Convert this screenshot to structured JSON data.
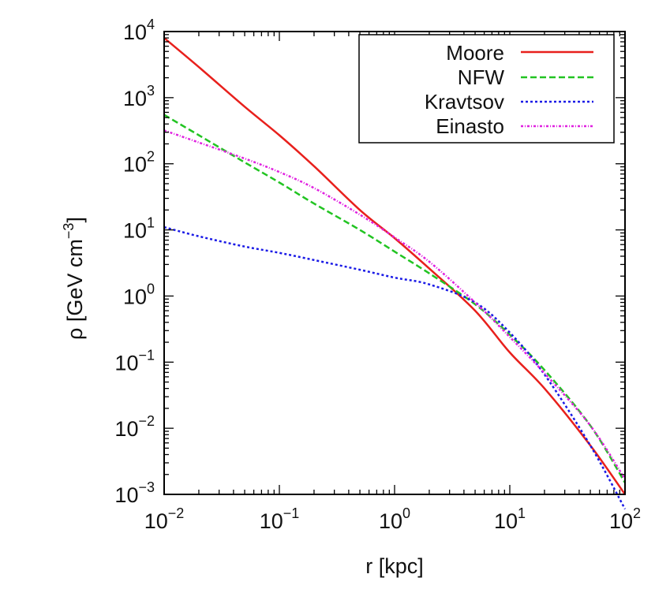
{
  "chart_data": {
    "type": "line",
    "xlabel": "r [kpc]",
    "ylabel": "ρ [GeV cm",
    "ylabel_exp": "−3",
    "ylabel_close": "]",
    "x_scale": "log",
    "y_scale": "log",
    "xlim": [
      0.01,
      100
    ],
    "ylim": [
      0.001,
      10000
    ],
    "x_tick_labels": [
      {
        "base": "10",
        "exp": "−2"
      },
      {
        "base": "10",
        "exp": "−1"
      },
      {
        "base": "10",
        "exp": "0"
      },
      {
        "base": "10",
        "exp": "1"
      },
      {
        "base": "10",
        "exp": "2"
      }
    ],
    "y_tick_labels": [
      {
        "base": "10",
        "exp": "−3"
      },
      {
        "base": "10",
        "exp": "−2"
      },
      {
        "base": "10",
        "exp": "−1"
      },
      {
        "base": "10",
        "exp": "0"
      },
      {
        "base": "10",
        "exp": "1"
      },
      {
        "base": "10",
        "exp": "2"
      },
      {
        "base": "10",
        "exp": "3"
      },
      {
        "base": "10",
        "exp": "4"
      }
    ],
    "grid": false,
    "legend_position": "top-right",
    "series": [
      {
        "name": "Moore",
        "color": "#e8201c",
        "dash": "solid",
        "x": [
          0.01,
          0.02,
          0.05,
          0.1,
          0.2,
          0.5,
          1,
          2,
          5,
          10,
          20,
          50,
          100
        ],
        "y": [
          8000,
          2900,
          730,
          270,
          92,
          20,
          7.5,
          2.6,
          0.6,
          0.14,
          0.04,
          0.0055,
          0.001
        ]
      },
      {
        "name": "NFW",
        "color": "#22c422",
        "dash": "dashed",
        "x": [
          0.01,
          0.02,
          0.05,
          0.1,
          0.2,
          0.5,
          1,
          2,
          5,
          10,
          20,
          50,
          100
        ],
        "y": [
          550,
          270,
          105,
          52,
          25,
          10,
          4.7,
          2.2,
          0.75,
          0.26,
          0.076,
          0.011,
          0.0015
        ]
      },
      {
        "name": "Kravtsov",
        "color": "#1a1ae6",
        "dash": "dotted",
        "x": [
          0.01,
          0.02,
          0.05,
          0.1,
          0.2,
          0.5,
          1,
          2,
          5,
          10,
          20,
          50,
          100
        ],
        "y": [
          11,
          8,
          5.6,
          4.5,
          3.5,
          2.5,
          1.9,
          1.5,
          0.8,
          0.28,
          0.065,
          0.0055,
          0.0006
        ]
      },
      {
        "name": "Einasto",
        "color": "#e020e0",
        "dash": "dashdot",
        "x": [
          0.01,
          0.02,
          0.05,
          0.1,
          0.2,
          0.5,
          1,
          2,
          5,
          10,
          20,
          50,
          100
        ],
        "y": [
          320,
          210,
          120,
          75,
          43,
          17,
          7.7,
          3.3,
          0.8,
          0.24,
          0.068,
          0.011,
          0.0017
        ]
      }
    ]
  }
}
